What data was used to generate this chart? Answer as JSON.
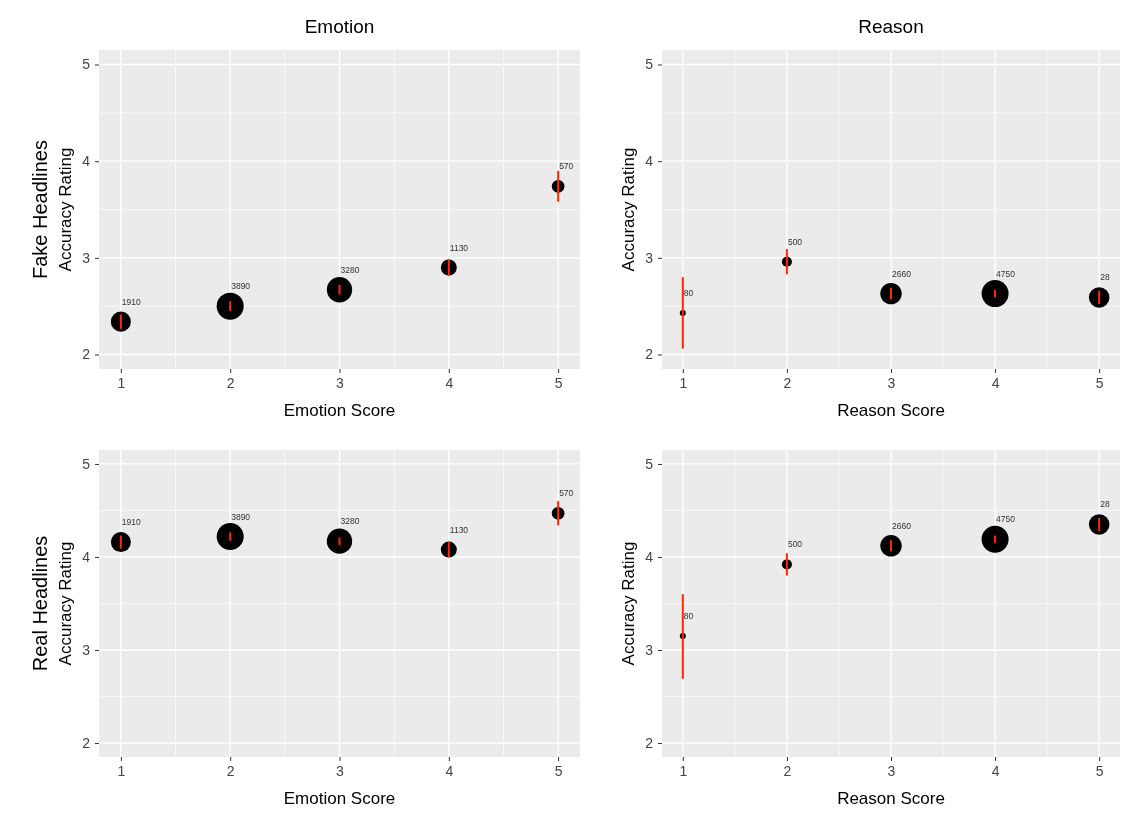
{
  "chart_data": [
    {
      "type": "bubble",
      "title": "Emotion",
      "xlabel": "Emotion Score",
      "ylabel": "Accuracy Rating",
      "xlim": [
        0.8,
        5.2
      ],
      "ylim": [
        1.85,
        5.15
      ],
      "xticks": [
        1,
        2,
        3,
        4,
        5
      ],
      "yticks": [
        2,
        3,
        4,
        5
      ],
      "grid": true,
      "marker": "circle",
      "annotations": [
        "Fake Headlines",
        {
          "text": "1910",
          "x": 1,
          "y": 2.34
        },
        {
          "text": "3890",
          "x": 2,
          "y": 2.5
        },
        {
          "text": "3280",
          "x": 3,
          "y": 2.67
        },
        {
          "text": "1130",
          "x": 4,
          "y": 2.9
        },
        {
          "text": "570",
          "x": 5,
          "y": 3.74
        }
      ],
      "x": [
        1,
        2,
        3,
        4,
        5
      ],
      "series": [
        {
          "color": "#000000",
          "values": [
            2.34,
            2.5,
            2.67,
            2.9,
            3.74
          ],
          "errors": [
            0.075,
            0.05,
            0.05,
            0.085,
            0.16
          ],
          "sizes": [
            0.55,
            1,
            0.88,
            0.35,
            0.22
          ]
        }
      ]
    },
    {
      "type": "bubble",
      "title": "Reason",
      "xlabel": "Reason Score",
      "ylabel": "Accuracy Rating",
      "xlim": [
        0.8,
        5.2
      ],
      "ylim": [
        1.85,
        5.15
      ],
      "xticks": [
        1,
        2,
        3,
        4,
        5
      ],
      "yticks": [
        2,
        3,
        4,
        5
      ],
      "grid": true,
      "marker": "circle",
      "annotations": [
        {
          "text": "80",
          "x": 1,
          "y": 2.43
        },
        {
          "text": "500",
          "x": 2,
          "y": 2.96
        },
        {
          "text": "2660",
          "x": 3,
          "y": 2.63
        },
        {
          "text": "4750",
          "x": 4,
          "y": 2.63
        },
        {
          "text": "28",
          "x": 5,
          "y": 2.59
        }
      ],
      "x": [
        1,
        2,
        3,
        4,
        5
      ],
      "series": [
        {
          "color": "#000000",
          "values": [
            2.43,
            2.96,
            2.63,
            2.63,
            2.59
          ],
          "errors": [
            [
              2.06,
              2.8
            ],
            0.13,
            0.06,
            0.04,
            0.07
          ],
          "sizes": [
            0.05,
            0.14,
            0.63,
            1,
            0.58
          ]
        }
      ]
    },
    {
      "type": "bubble",
      "xlabel": "Emotion Score",
      "ylabel": "Accuracy Rating",
      "xlim": [
        0.8,
        5.2
      ],
      "ylim": [
        1.85,
        5.15
      ],
      "xticks": [
        1,
        2,
        3,
        4,
        5
      ],
      "yticks": [
        2,
        3,
        4,
        5
      ],
      "grid": true,
      "marker": "circle",
      "annotations": [
        "Real Headlines",
        {
          "text": "1910",
          "x": 1,
          "y": 4.16
        },
        {
          "text": "3890",
          "x": 2,
          "y": 4.22
        },
        {
          "text": "3280",
          "x": 3,
          "y": 4.17
        },
        {
          "text": "1130",
          "x": 4,
          "y": 4.08
        },
        {
          "text": "570",
          "x": 5,
          "y": 4.47
        }
      ],
      "x": [
        1,
        2,
        3,
        4,
        5
      ],
      "series": [
        {
          "color": "#000000",
          "values": [
            4.16,
            4.22,
            4.17,
            4.08,
            4.47
          ],
          "errors": [
            0.07,
            0.045,
            0.04,
            0.08,
            0.13
          ],
          "sizes": [
            0.55,
            1,
            0.88,
            0.35,
            0.22
          ]
        }
      ]
    },
    {
      "type": "bubble",
      "xlabel": "Reason Score",
      "ylabel": "Accuracy Rating",
      "xlim": [
        0.8,
        5.2
      ],
      "ylim": [
        1.85,
        5.15
      ],
      "xticks": [
        1,
        2,
        3,
        4,
        5
      ],
      "yticks": [
        2,
        3,
        4,
        5
      ],
      "grid": true,
      "marker": "circle",
      "annotations": [
        {
          "text": "80",
          "x": 1,
          "y": 3.15
        },
        {
          "text": "500",
          "x": 2,
          "y": 3.92
        },
        {
          "text": "2660",
          "x": 3,
          "y": 4.12
        },
        {
          "text": "4750",
          "x": 4,
          "y": 4.19
        },
        {
          "text": "28",
          "x": 5,
          "y": 4.35
        }
      ],
      "x": [
        1,
        2,
        3,
        4,
        5
      ],
      "series": [
        {
          "color": "#000000",
          "values": [
            3.15,
            3.92,
            4.12,
            4.19,
            4.35
          ],
          "errors": [
            [
              2.69,
              3.6
            ],
            0.12,
            0.06,
            0.04,
            0.07
          ],
          "sizes": [
            0.05,
            0.14,
            0.63,
            1,
            0.58
          ]
        }
      ]
    }
  ]
}
